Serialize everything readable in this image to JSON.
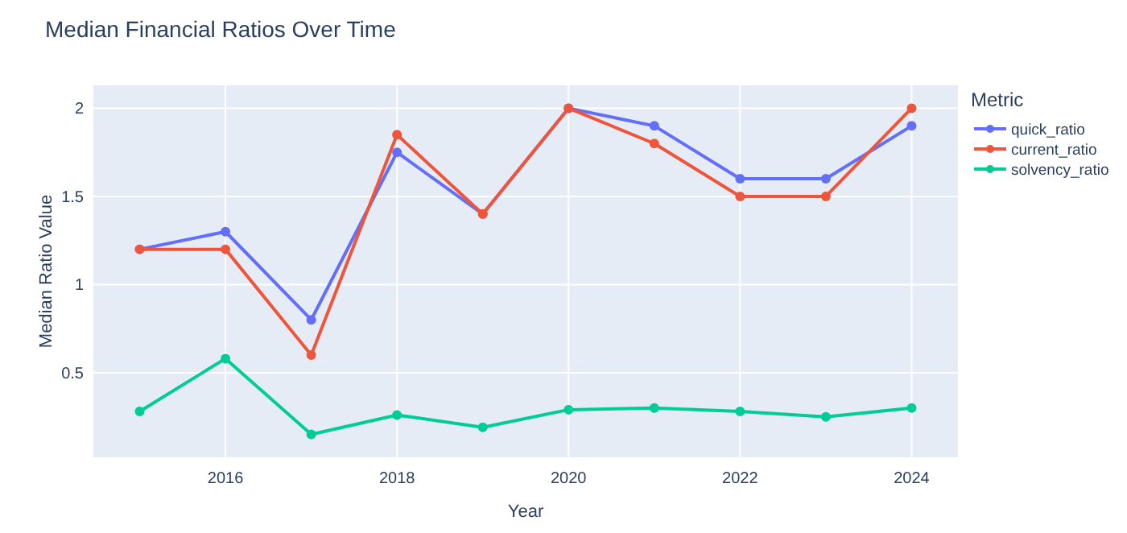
{
  "chart_data": {
    "type": "line",
    "title": "Median Financial Ratios Over Time",
    "xlabel": "Year",
    "ylabel": "Median Ratio Value",
    "legend_title": "Metric",
    "x": [
      2015,
      2016,
      2017,
      2018,
      2019,
      2020,
      2021,
      2022,
      2023,
      2024
    ],
    "series": [
      {
        "name": "quick_ratio",
        "color": "#636efa",
        "values": [
          1.2,
          1.3,
          0.8,
          1.75,
          1.4,
          2.0,
          1.9,
          1.6,
          1.6,
          1.9
        ]
      },
      {
        "name": "current_ratio",
        "color": "#ef553b",
        "values": [
          1.2,
          1.2,
          0.6,
          1.85,
          1.4,
          2.0,
          1.8,
          1.5,
          1.5,
          2.0
        ]
      },
      {
        "name": "solvency_ratio",
        "color": "#00cc96",
        "values": [
          0.28,
          0.58,
          0.15,
          0.26,
          0.19,
          0.29,
          0.3,
          0.28,
          0.25,
          0.3
        ]
      }
    ],
    "xlim": [
      2014.46,
      2024.54
    ],
    "xticks": [
      2016,
      2018,
      2020,
      2022,
      2024
    ],
    "ylim": [
      0.02,
      2.13
    ],
    "yticks": [
      0.5,
      1,
      1.5,
      2
    ],
    "grid": true,
    "legend": "right",
    "marker": "circle",
    "line_style": "solid"
  }
}
